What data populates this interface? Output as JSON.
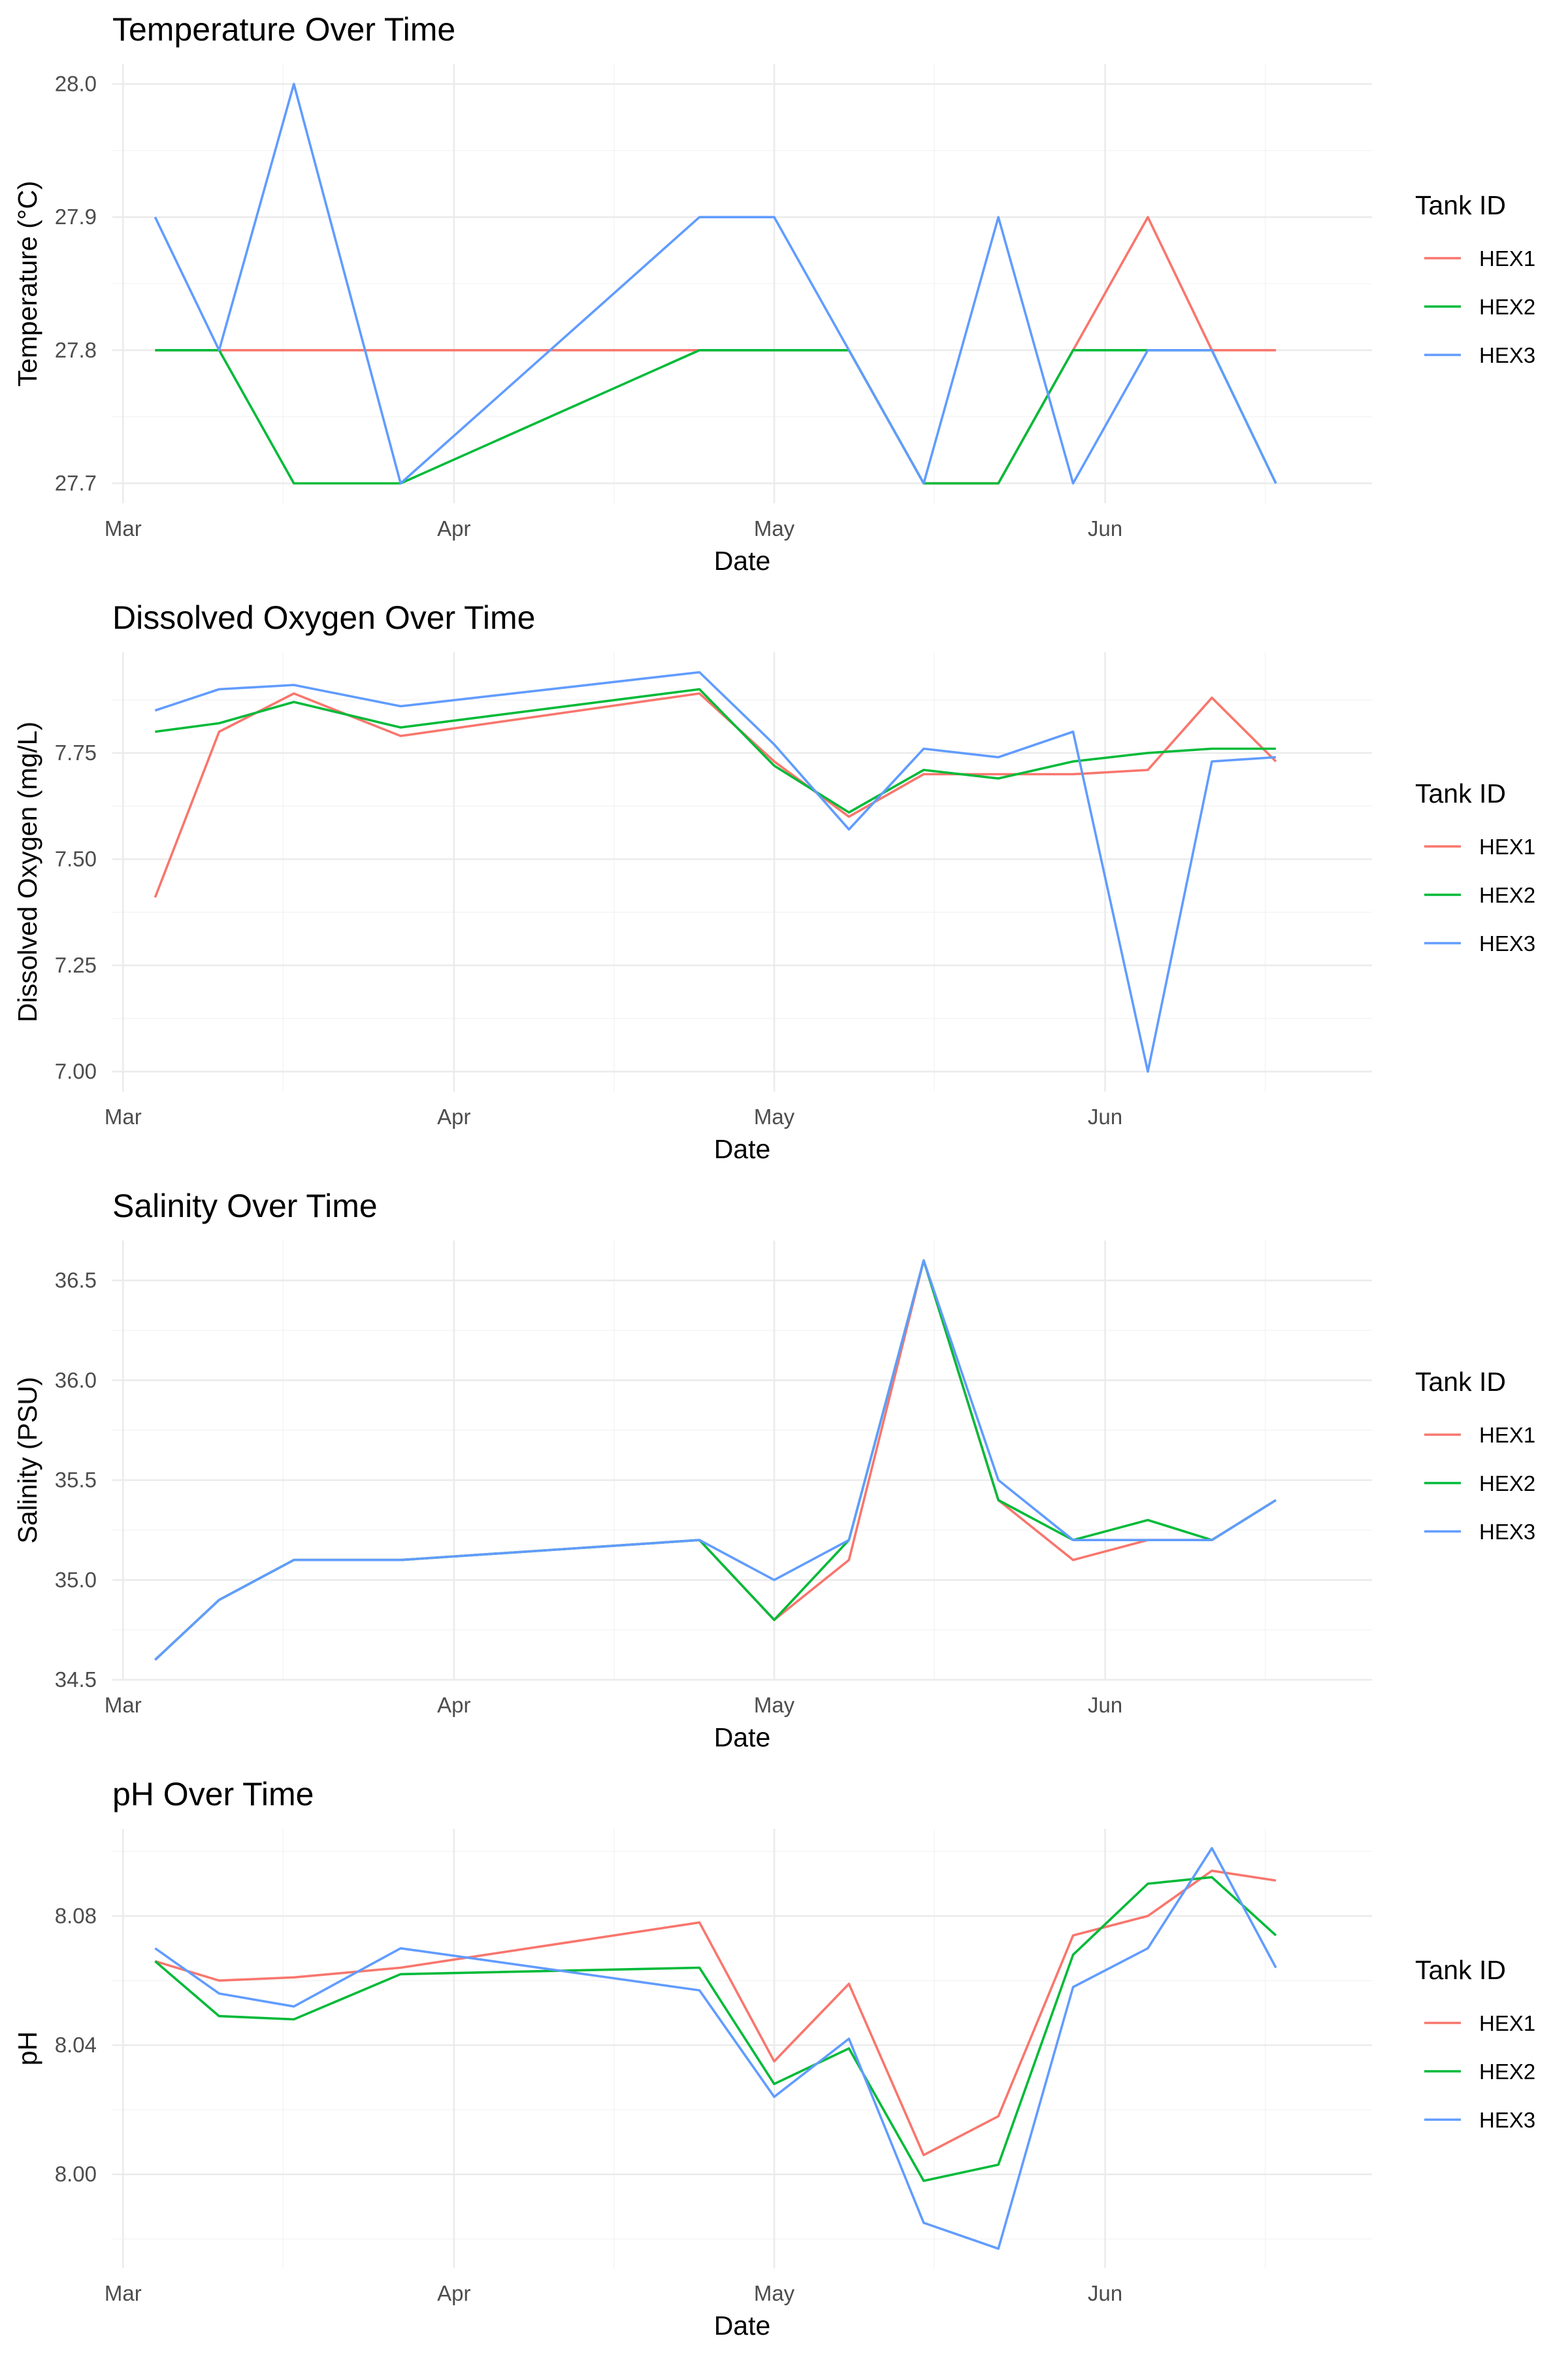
{
  "colors": {
    "HEX1": "#F8766D",
    "HEX2": "#00BA38",
    "HEX3": "#619CFF"
  },
  "chart_data": [
    {
      "type": "line",
      "title": "Temperature Over Time",
      "xlabel": "Date",
      "ylabel": "Temperature (°C)",
      "legend_title": "Tank ID",
      "legend_position": "right",
      "grid": true,
      "xlim": [
        "2024-02-29",
        "2024-06-26"
      ],
      "ylim": [
        27.685,
        28.015
      ],
      "x_ticks": [
        {
          "date": "2024-03-01",
          "label": "Mar"
        },
        {
          "date": "2024-04-01",
          "label": "Apr"
        },
        {
          "date": "2024-05-01",
          "label": "May"
        },
        {
          "date": "2024-06-01",
          "label": "Jun"
        }
      ],
      "x_minor_ticks": [
        "2024-03-16",
        "2024-04-16",
        "2024-05-16",
        "2024-06-16"
      ],
      "y_ticks": [
        {
          "value": 27.7,
          "label": "27.7"
        },
        {
          "value": 27.8,
          "label": "27.8"
        },
        {
          "value": 27.9,
          "label": "27.9"
        },
        {
          "value": 28.0,
          "label": "28.0"
        }
      ],
      "y_minor_ticks": [
        27.75,
        27.85,
        27.95
      ],
      "series": [
        {
          "name": "HEX1",
          "color": "#F8766D",
          "points": [
            [
              "2024-03-04",
              27.8
            ],
            [
              "2024-03-10",
              27.8
            ],
            [
              "2024-03-17",
              27.8
            ],
            [
              "2024-03-27",
              27.8
            ],
            [
              "2024-04-24",
              27.8
            ],
            [
              "2024-05-01",
              27.8
            ],
            [
              "2024-05-08",
              27.8
            ],
            [
              "2024-05-15",
              27.7
            ],
            [
              "2024-05-22",
              27.7
            ],
            [
              "2024-05-29",
              27.8
            ],
            [
              "2024-06-05",
              27.9
            ],
            [
              "2024-06-11",
              27.8
            ],
            [
              "2024-06-17",
              27.8
            ]
          ]
        },
        {
          "name": "HEX2",
          "color": "#00BA38",
          "points": [
            [
              "2024-03-04",
              27.8
            ],
            [
              "2024-03-10",
              27.8
            ],
            [
              "2024-03-17",
              27.7
            ],
            [
              "2024-03-27",
              27.7
            ],
            [
              "2024-04-24",
              27.8
            ],
            [
              "2024-05-01",
              27.8
            ],
            [
              "2024-05-08",
              27.8
            ],
            [
              "2024-05-15",
              27.7
            ],
            [
              "2024-05-22",
              27.7
            ],
            [
              "2024-05-29",
              27.8
            ],
            [
              "2024-06-05",
              27.8
            ],
            [
              "2024-06-11",
              27.8
            ],
            [
              "2024-06-17",
              27.7
            ]
          ]
        },
        {
          "name": "HEX3",
          "color": "#619CFF",
          "points": [
            [
              "2024-03-04",
              27.9
            ],
            [
              "2024-03-10",
              27.8
            ],
            [
              "2024-03-17",
              28.0
            ],
            [
              "2024-03-27",
              27.7
            ],
            [
              "2024-04-24",
              27.9
            ],
            [
              "2024-05-01",
              27.9
            ],
            [
              "2024-05-08",
              27.8
            ],
            [
              "2024-05-15",
              27.7
            ],
            [
              "2024-05-22",
              27.9
            ],
            [
              "2024-05-29",
              27.7
            ],
            [
              "2024-06-05",
              27.8
            ],
            [
              "2024-06-11",
              27.8
            ],
            [
              "2024-06-17",
              27.7
            ]
          ]
        }
      ]
    },
    {
      "type": "line",
      "title": "Dissolved Oxygen Over Time",
      "xlabel": "Date",
      "ylabel": "Dissolved Oxygen (mg/L)",
      "legend_title": "Tank ID",
      "legend_position": "right",
      "grid": true,
      "xlim": [
        "2024-02-29",
        "2024-06-26"
      ],
      "ylim": [
        6.953,
        7.987
      ],
      "x_ticks": [
        {
          "date": "2024-03-01",
          "label": "Mar"
        },
        {
          "date": "2024-04-01",
          "label": "Apr"
        },
        {
          "date": "2024-05-01",
          "label": "May"
        },
        {
          "date": "2024-06-01",
          "label": "Jun"
        }
      ],
      "x_minor_ticks": [
        "2024-03-16",
        "2024-04-16",
        "2024-05-16",
        "2024-06-16"
      ],
      "y_ticks": [
        {
          "value": 7.0,
          "label": "7.00"
        },
        {
          "value": 7.25,
          "label": "7.25"
        },
        {
          "value": 7.5,
          "label": "7.50"
        },
        {
          "value": 7.75,
          "label": "7.75"
        }
      ],
      "y_minor_ticks": [
        7.125,
        7.375,
        7.625,
        7.875
      ],
      "series": [
        {
          "name": "HEX1",
          "color": "#F8766D",
          "points": [
            [
              "2024-03-04",
              7.41
            ],
            [
              "2024-03-10",
              7.8
            ],
            [
              "2024-03-17",
              7.89
            ],
            [
              "2024-03-27",
              7.79
            ],
            [
              "2024-04-24",
              7.89
            ],
            [
              "2024-05-01",
              7.73
            ],
            [
              "2024-05-08",
              7.6
            ],
            [
              "2024-05-15",
              7.7
            ],
            [
              "2024-05-22",
              7.7
            ],
            [
              "2024-05-29",
              7.7
            ],
            [
              "2024-06-05",
              7.71
            ],
            [
              "2024-06-11",
              7.88
            ],
            [
              "2024-06-17",
              7.73
            ]
          ]
        },
        {
          "name": "HEX2",
          "color": "#00BA38",
          "points": [
            [
              "2024-03-04",
              7.8
            ],
            [
              "2024-03-10",
              7.82
            ],
            [
              "2024-03-17",
              7.87
            ],
            [
              "2024-03-27",
              7.81
            ],
            [
              "2024-04-24",
              7.9
            ],
            [
              "2024-05-01",
              7.72
            ],
            [
              "2024-05-08",
              7.61
            ],
            [
              "2024-05-15",
              7.71
            ],
            [
              "2024-05-22",
              7.69
            ],
            [
              "2024-05-29",
              7.73
            ],
            [
              "2024-06-05",
              7.75
            ],
            [
              "2024-06-11",
              7.76
            ],
            [
              "2024-06-17",
              7.76
            ]
          ]
        },
        {
          "name": "HEX3",
          "color": "#619CFF",
          "points": [
            [
              "2024-03-04",
              7.85
            ],
            [
              "2024-03-10",
              7.9
            ],
            [
              "2024-03-17",
              7.91
            ],
            [
              "2024-03-27",
              7.86
            ],
            [
              "2024-04-24",
              7.94
            ],
            [
              "2024-05-01",
              7.77
            ],
            [
              "2024-05-08",
              7.57
            ],
            [
              "2024-05-15",
              7.76
            ],
            [
              "2024-05-22",
              7.74
            ],
            [
              "2024-05-29",
              7.8
            ],
            [
              "2024-06-05",
              7.0
            ],
            [
              "2024-06-11",
              7.73
            ],
            [
              "2024-06-17",
              7.74
            ]
          ]
        }
      ]
    },
    {
      "type": "line",
      "title": "Salinity Over Time",
      "xlabel": "Date",
      "ylabel": "Salinity (PSU)",
      "legend_title": "Tank ID",
      "legend_position": "right",
      "grid": true,
      "xlim": [
        "2024-02-29",
        "2024-06-26"
      ],
      "ylim": [
        34.5,
        36.7
      ],
      "x_ticks": [
        {
          "date": "2024-03-01",
          "label": "Mar"
        },
        {
          "date": "2024-04-01",
          "label": "Apr"
        },
        {
          "date": "2024-05-01",
          "label": "May"
        },
        {
          "date": "2024-06-01",
          "label": "Jun"
        }
      ],
      "x_minor_ticks": [
        "2024-03-16",
        "2024-04-16",
        "2024-05-16",
        "2024-06-16"
      ],
      "y_ticks": [
        {
          "value": 34.5,
          "label": "34.5"
        },
        {
          "value": 35.0,
          "label": "35.0"
        },
        {
          "value": 35.5,
          "label": "35.5"
        },
        {
          "value": 36.0,
          "label": "36.0"
        },
        {
          "value": 36.5,
          "label": "36.5"
        }
      ],
      "y_minor_ticks": [
        34.75,
        35.25,
        35.75,
        36.25
      ],
      "series": [
        {
          "name": "HEX1",
          "color": "#F8766D",
          "points": [
            [
              "2024-03-04",
              34.6
            ],
            [
              "2024-03-10",
              34.9
            ],
            [
              "2024-03-17",
              35.1
            ],
            [
              "2024-03-27",
              35.1
            ],
            [
              "2024-04-24",
              35.2
            ],
            [
              "2024-05-01",
              34.8
            ],
            [
              "2024-05-08",
              35.1
            ],
            [
              "2024-05-15",
              36.6
            ],
            [
              "2024-05-22",
              35.4
            ],
            [
              "2024-05-29",
              35.1
            ],
            [
              "2024-06-05",
              35.2
            ],
            [
              "2024-06-11",
              35.2
            ],
            [
              "2024-06-17",
              35.4
            ]
          ]
        },
        {
          "name": "HEX2",
          "color": "#00BA38",
          "points": [
            [
              "2024-03-04",
              34.6
            ],
            [
              "2024-03-10",
              34.9
            ],
            [
              "2024-03-17",
              35.1
            ],
            [
              "2024-03-27",
              35.1
            ],
            [
              "2024-04-24",
              35.2
            ],
            [
              "2024-05-01",
              34.8
            ],
            [
              "2024-05-08",
              35.2
            ],
            [
              "2024-05-15",
              36.6
            ],
            [
              "2024-05-22",
              35.4
            ],
            [
              "2024-05-29",
              35.2
            ],
            [
              "2024-06-05",
              35.3
            ],
            [
              "2024-06-11",
              35.2
            ],
            [
              "2024-06-17",
              35.4
            ]
          ]
        },
        {
          "name": "HEX3",
          "color": "#619CFF",
          "points": [
            [
              "2024-03-04",
              34.6
            ],
            [
              "2024-03-10",
              34.9
            ],
            [
              "2024-03-17",
              35.1
            ],
            [
              "2024-03-27",
              35.1
            ],
            [
              "2024-04-24",
              35.2
            ],
            [
              "2024-05-01",
              35.0
            ],
            [
              "2024-05-08",
              35.2
            ],
            [
              "2024-05-15",
              36.6
            ],
            [
              "2024-05-22",
              35.5
            ],
            [
              "2024-05-29",
              35.2
            ],
            [
              "2024-06-05",
              35.2
            ],
            [
              "2024-06-11",
              35.2
            ],
            [
              "2024-06-17",
              35.4
            ]
          ]
        }
      ]
    },
    {
      "type": "line",
      "title": "pH Over Time",
      "xlabel": "Date",
      "ylabel": "pH",
      "legend_title": "Tank ID",
      "legend_position": "right",
      "grid": true,
      "xlim": [
        "2024-02-29",
        "2024-06-26"
      ],
      "ylim": [
        7.971,
        8.107
      ],
      "x_ticks": [
        {
          "date": "2024-03-01",
          "label": "Mar"
        },
        {
          "date": "2024-04-01",
          "label": "Apr"
        },
        {
          "date": "2024-05-01",
          "label": "May"
        },
        {
          "date": "2024-06-01",
          "label": "Jun"
        }
      ],
      "x_minor_ticks": [
        "2024-03-16",
        "2024-04-16",
        "2024-05-16",
        "2024-06-16"
      ],
      "y_ticks": [
        {
          "value": 8.0,
          "label": "8.00"
        },
        {
          "value": 8.04,
          "label": "8.04"
        },
        {
          "value": 8.08,
          "label": "8.08"
        }
      ],
      "y_minor_ticks": [
        7.98,
        8.02,
        8.06,
        8.1
      ],
      "series": [
        {
          "name": "HEX1",
          "color": "#F8766D",
          "points": [
            [
              "2024-03-04",
              8.066
            ],
            [
              "2024-03-10",
              8.06
            ],
            [
              "2024-03-17",
              8.061
            ],
            [
              "2024-03-27",
              8.064
            ],
            [
              "2024-04-24",
              8.078
            ],
            [
              "2024-05-01",
              8.035
            ],
            [
              "2024-05-08",
              8.059
            ],
            [
              "2024-05-15",
              8.006
            ],
            [
              "2024-05-22",
              8.018
            ],
            [
              "2024-05-29",
              8.074
            ],
            [
              "2024-06-05",
              8.08
            ],
            [
              "2024-06-11",
              8.094
            ],
            [
              "2024-06-17",
              8.091
            ]
          ]
        },
        {
          "name": "HEX2",
          "color": "#00BA38",
          "points": [
            [
              "2024-03-04",
              8.066
            ],
            [
              "2024-03-10",
              8.049
            ],
            [
              "2024-03-17",
              8.048
            ],
            [
              "2024-03-27",
              8.062
            ],
            [
              "2024-04-24",
              8.064
            ],
            [
              "2024-05-01",
              8.028
            ],
            [
              "2024-05-08",
              8.039
            ],
            [
              "2024-05-15",
              7.998
            ],
            [
              "2024-05-22",
              8.003
            ],
            [
              "2024-05-29",
              8.068
            ],
            [
              "2024-06-05",
              8.09
            ],
            [
              "2024-06-11",
              8.092
            ],
            [
              "2024-06-17",
              8.074
            ]
          ]
        },
        {
          "name": "HEX3",
          "color": "#619CFF",
          "points": [
            [
              "2024-03-04",
              8.07
            ],
            [
              "2024-03-10",
              8.056
            ],
            [
              "2024-03-17",
              8.052
            ],
            [
              "2024-03-27",
              8.07
            ],
            [
              "2024-04-24",
              8.057
            ],
            [
              "2024-05-01",
              8.024
            ],
            [
              "2024-05-08",
              8.042
            ],
            [
              "2024-05-15",
              7.985
            ],
            [
              "2024-05-22",
              7.977
            ],
            [
              "2024-05-29",
              8.058
            ],
            [
              "2024-06-05",
              8.07
            ],
            [
              "2024-06-11",
              8.101
            ],
            [
              "2024-06-17",
              8.064
            ]
          ]
        }
      ]
    }
  ]
}
